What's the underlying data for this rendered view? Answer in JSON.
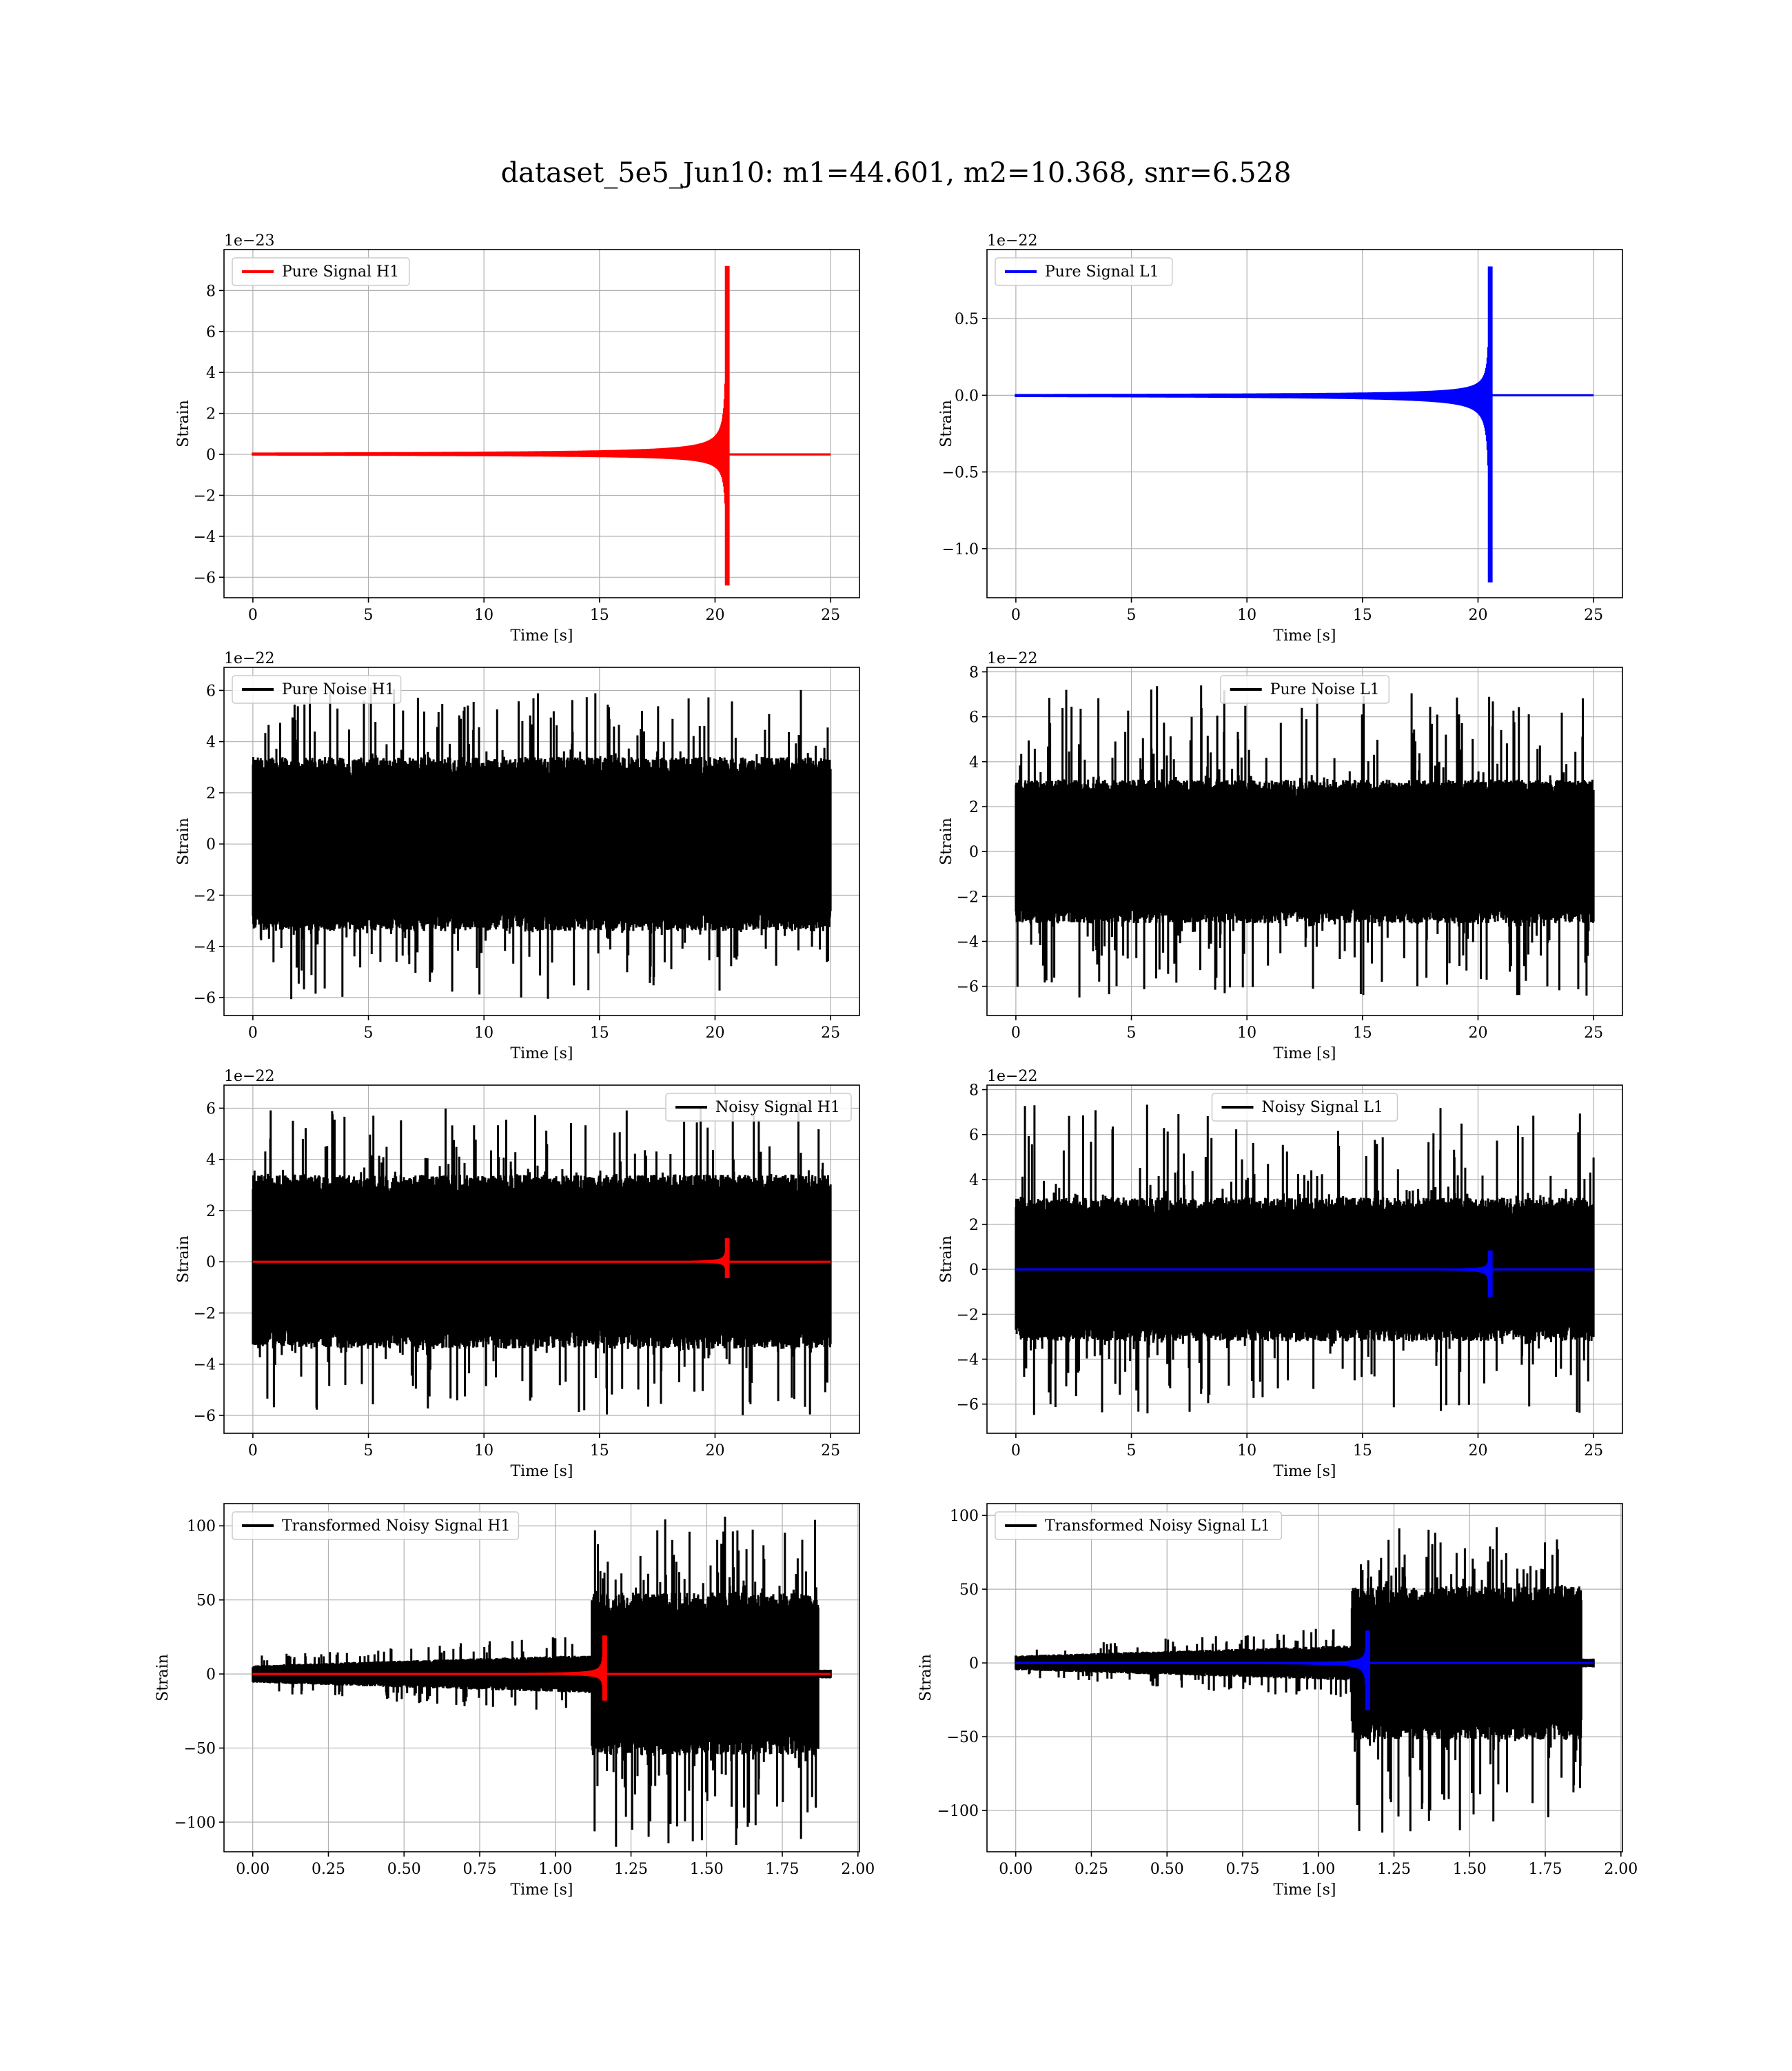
{
  "figure": {
    "suptitle": "dataset_5e5_Jun10: m1=44.601, m2=10.368, snr=6.528"
  },
  "chart_data": [
    {
      "type": "line",
      "panel": "row1-left",
      "xlabel": "Time [s]",
      "ylabel": "Strain",
      "offset_text": "1e−23",
      "xlim": [
        -1.25,
        26.25
      ],
      "ylim": [
        -7.0,
        10.0
      ],
      "xticks": [
        0,
        5,
        10,
        15,
        20,
        25
      ],
      "yticks": [
        -6,
        -4,
        -2,
        0,
        2,
        4,
        6,
        8
      ],
      "grid": true,
      "legend_position": "upper left",
      "series": [
        {
          "name": "Pure Signal H1",
          "color": "#ff0000",
          "kind": "chirp",
          "x_start": 0,
          "x_end": 25,
          "merger_time": 20.5,
          "peak_pos": 9.2,
          "peak_neg": -6.4
        }
      ]
    },
    {
      "type": "line",
      "panel": "row1-right",
      "xlabel": "Time [s]",
      "ylabel": "Strain",
      "offset_text": "1e−22",
      "xlim": [
        -1.25,
        26.25
      ],
      "ylim": [
        -1.32,
        0.95
      ],
      "xticks": [
        0,
        5,
        10,
        15,
        20,
        25
      ],
      "yticks": [
        -1.0,
        -0.5,
        0.0,
        0.5
      ],
      "ytick_labels": [
        "−1.0",
        "−0.5",
        "0.0",
        "0.5"
      ],
      "grid": true,
      "legend_position": "upper left",
      "series": [
        {
          "name": "Pure Signal L1",
          "color": "#0000ff",
          "kind": "chirp",
          "x_start": 0,
          "x_end": 25,
          "merger_time": 20.5,
          "peak_pos": 0.84,
          "peak_neg": -1.22
        }
      ]
    },
    {
      "type": "line",
      "panel": "row2-left",
      "xlabel": "Time [s]",
      "ylabel": "Strain",
      "offset_text": "1e−22",
      "xlim": [
        -1.25,
        26.25
      ],
      "ylim": [
        -6.7,
        6.9
      ],
      "xticks": [
        0,
        5,
        10,
        15,
        20,
        25
      ],
      "yticks": [
        -6,
        -4,
        -2,
        0,
        2,
        4,
        6
      ],
      "grid": true,
      "legend_position": "upper left",
      "series": [
        {
          "name": "Pure Noise H1",
          "color": "#000000",
          "kind": "noise",
          "x_start": 0,
          "x_end": 25,
          "band": 3.4,
          "spike_max": 6.3,
          "spike_min": -6.1
        }
      ]
    },
    {
      "type": "line",
      "panel": "row2-right",
      "xlabel": "Time [s]",
      "ylabel": "Strain",
      "offset_text": "1e−22",
      "xlim": [
        -1.25,
        26.25
      ],
      "ylim": [
        -7.3,
        8.2
      ],
      "xticks": [
        0,
        5,
        10,
        15,
        20,
        25
      ],
      "yticks": [
        -6,
        -4,
        -2,
        0,
        2,
        4,
        6,
        8
      ],
      "grid": true,
      "legend_position": "upper center",
      "series": [
        {
          "name": "Pure Noise L1",
          "color": "#000000",
          "kind": "noise",
          "x_start": 0,
          "x_end": 25,
          "band": 3.2,
          "spike_max": 7.5,
          "spike_min": -6.5
        }
      ]
    },
    {
      "type": "line",
      "panel": "row3-left",
      "xlabel": "Time [s]",
      "ylabel": "Strain",
      "offset_text": "1e−22",
      "xlim": [
        -1.25,
        26.25
      ],
      "ylim": [
        -6.7,
        6.9
      ],
      "xticks": [
        0,
        5,
        10,
        15,
        20,
        25
      ],
      "yticks": [
        -6,
        -4,
        -2,
        0,
        2,
        4,
        6
      ],
      "grid": true,
      "legend_position": "upper right",
      "series": [
        {
          "name": "Noisy Signal H1",
          "color": "#000000",
          "kind": "noise",
          "x_start": 0,
          "x_end": 25,
          "band": 3.4,
          "spike_max": 6.3,
          "spike_min": -6.1
        },
        {
          "name": "",
          "color": "#ff0000",
          "kind": "chirp",
          "x_start": 0,
          "x_end": 25,
          "merger_time": 20.5,
          "peak_pos": 0.92,
          "peak_neg": -0.64
        }
      ]
    },
    {
      "type": "line",
      "panel": "row3-right",
      "xlabel": "Time [s]",
      "ylabel": "Strain",
      "offset_text": "1e−22",
      "xlim": [
        -1.25,
        26.25
      ],
      "ylim": [
        -7.3,
        8.2
      ],
      "xticks": [
        0,
        5,
        10,
        15,
        20,
        25
      ],
      "yticks": [
        -6,
        -4,
        -2,
        0,
        2,
        4,
        6,
        8
      ],
      "grid": true,
      "legend_position": "upper center",
      "series": [
        {
          "name": "Noisy Signal L1",
          "color": "#000000",
          "kind": "noise",
          "x_start": 0,
          "x_end": 25,
          "band": 3.2,
          "spike_max": 7.5,
          "spike_min": -6.5
        },
        {
          "name": "",
          "color": "#0000ff",
          "kind": "chirp",
          "x_start": 0,
          "x_end": 25,
          "merger_time": 20.5,
          "peak_pos": 0.84,
          "peak_neg": -1.22
        }
      ]
    },
    {
      "type": "line",
      "panel": "row4-left",
      "xlabel": "Time [s]",
      "ylabel": "Strain",
      "offset_text": "",
      "xlim": [
        -0.095,
        2.005
      ],
      "ylim": [
        -120,
        115
      ],
      "xticks": [
        0.0,
        0.25,
        0.5,
        0.75,
        1.0,
        1.25,
        1.5,
        1.75,
        2.0
      ],
      "xtick_labels": [
        "0.00",
        "0.25",
        "0.50",
        "0.75",
        "1.00",
        "1.25",
        "1.50",
        "1.75",
        "2.00"
      ],
      "yticks": [
        -100,
        -50,
        0,
        50,
        100
      ],
      "ytick_labels": [
        "−100",
        "−50",
        "0",
        "50",
        "100"
      ],
      "grid": true,
      "legend_position": "upper left",
      "series": [
        {
          "name": "Transformed Noisy Signal H1",
          "color": "#000000",
          "kind": "transformed_noise",
          "x_start": 0,
          "x_end": 1.91,
          "step_time": 1.12,
          "cut_time": 1.87,
          "band_early": 6,
          "band_late_mid": 13,
          "band_late": 55,
          "spike_max": 107,
          "spike_min": -118
        },
        {
          "name": "",
          "color": "#ff0000",
          "kind": "transformed_chirp",
          "x_start": 0,
          "x_end": 1.91,
          "merger_time": 1.16,
          "peak_pos": 26,
          "peak_neg": -18
        }
      ]
    },
    {
      "type": "line",
      "panel": "row4-right",
      "xlabel": "Time [s]",
      "ylabel": "Strain",
      "offset_text": "",
      "xlim": [
        -0.095,
        2.005
      ],
      "ylim": [
        -128,
        108
      ],
      "xticks": [
        0.0,
        0.25,
        0.5,
        0.75,
        1.0,
        1.25,
        1.5,
        1.75,
        2.0
      ],
      "xtick_labels": [
        "0.00",
        "0.25",
        "0.50",
        "0.75",
        "1.00",
        "1.25",
        "1.50",
        "1.75",
        "2.00"
      ],
      "yticks": [
        -100,
        -50,
        0,
        50,
        100
      ],
      "ytick_labels": [
        "−100",
        "−50",
        "0",
        "50",
        "100"
      ],
      "grid": true,
      "legend_position": "upper left",
      "series": [
        {
          "name": "Transformed Noisy Signal L1",
          "color": "#000000",
          "kind": "transformed_noise",
          "x_start": 0,
          "x_end": 1.91,
          "step_time": 1.11,
          "cut_time": 1.87,
          "band_early": 5,
          "band_late_mid": 12,
          "band_late": 52,
          "spike_max": 97,
          "spike_min": -117
        },
        {
          "name": "",
          "color": "#0000ff",
          "kind": "transformed_chirp",
          "x_start": 0,
          "x_end": 1.91,
          "merger_time": 1.16,
          "peak_pos": 22,
          "peak_neg": -32
        }
      ]
    }
  ]
}
